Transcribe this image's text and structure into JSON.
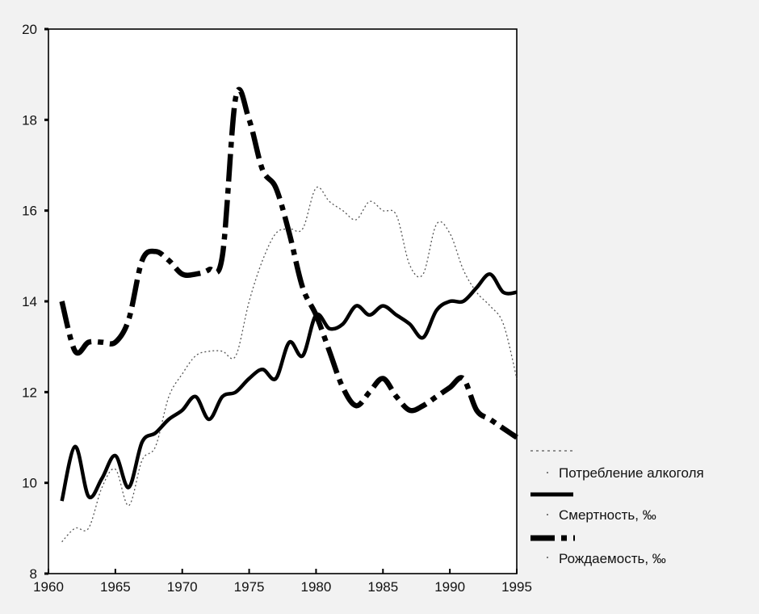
{
  "chart_data": {
    "type": "line",
    "x_ticks": [
      1960,
      1965,
      1970,
      1975,
      1980,
      1985,
      1990,
      1995
    ],
    "y_ticks": [
      8,
      10,
      12,
      14,
      16,
      18,
      20
    ],
    "xlim": [
      1960,
      1995
    ],
    "ylim": [
      8,
      20
    ],
    "grid": false,
    "legend_position": "right-bottom",
    "series": [
      {
        "name": "Потребление алкоголя",
        "style": "dotted",
        "color": "#555555",
        "x": [
          1961,
          1962,
          1963,
          1964,
          1965,
          1966,
          1967,
          1968,
          1969,
          1970,
          1971,
          1972,
          1973,
          1974,
          1975,
          1976,
          1977,
          1978,
          1979,
          1980,
          1981,
          1982,
          1983,
          1984,
          1985,
          1986,
          1987,
          1988,
          1989,
          1990,
          1991,
          1992,
          1993,
          1994,
          1995
        ],
        "y": [
          8.7,
          9.0,
          9.0,
          9.9,
          10.3,
          9.5,
          10.5,
          10.8,
          11.9,
          12.4,
          12.8,
          12.9,
          12.9,
          12.8,
          14.0,
          14.9,
          15.5,
          15.6,
          15.6,
          16.5,
          16.2,
          16.0,
          15.8,
          16.2,
          16.0,
          15.9,
          14.8,
          14.6,
          15.7,
          15.5,
          14.7,
          14.2,
          13.9,
          13.5,
          12.3
        ]
      },
      {
        "name": "Смертность, ‰",
        "style": "solid",
        "color": "#000000",
        "x": [
          1961,
          1962,
          1963,
          1964,
          1965,
          1966,
          1967,
          1968,
          1969,
          1970,
          1971,
          1972,
          1973,
          1974,
          1975,
          1976,
          1977,
          1978,
          1979,
          1980,
          1981,
          1982,
          1983,
          1984,
          1985,
          1986,
          1987,
          1988,
          1989,
          1990,
          1991,
          1992,
          1993,
          1994,
          1995
        ],
        "y": [
          9.6,
          10.8,
          9.7,
          10.1,
          10.6,
          9.9,
          10.9,
          11.1,
          11.4,
          11.6,
          11.9,
          11.4,
          11.9,
          12.0,
          12.3,
          12.5,
          12.3,
          13.1,
          12.8,
          13.7,
          13.4,
          13.5,
          13.9,
          13.7,
          13.9,
          13.7,
          13.5,
          13.2,
          13.8,
          14.0,
          14.0,
          14.3,
          14.6,
          14.2,
          14.2
        ]
      },
      {
        "name": "Рождаемость, ‰",
        "style": "dash-dot",
        "color": "#000000",
        "x": [
          1961,
          1962,
          1963,
          1964,
          1965,
          1966,
          1967,
          1968,
          1969,
          1970,
          1971,
          1972,
          1973,
          1974,
          1975,
          1976,
          1977,
          1978,
          1979,
          1980,
          1981,
          1982,
          1983,
          1984,
          1985,
          1986,
          1987,
          1988,
          1989,
          1990,
          1991,
          1992,
          1993,
          1994,
          1995
        ],
        "y": [
          14.0,
          12.9,
          13.1,
          13.1,
          13.1,
          13.6,
          14.9,
          15.1,
          14.9,
          14.6,
          14.6,
          14.7,
          15.0,
          18.5,
          18.0,
          16.9,
          16.5,
          15.5,
          14.3,
          13.7,
          12.9,
          12.1,
          11.7,
          12.0,
          12.3,
          11.9,
          11.6,
          11.7,
          11.9,
          12.1,
          12.3,
          11.6,
          11.4,
          11.2,
          11.0
        ]
      }
    ]
  }
}
